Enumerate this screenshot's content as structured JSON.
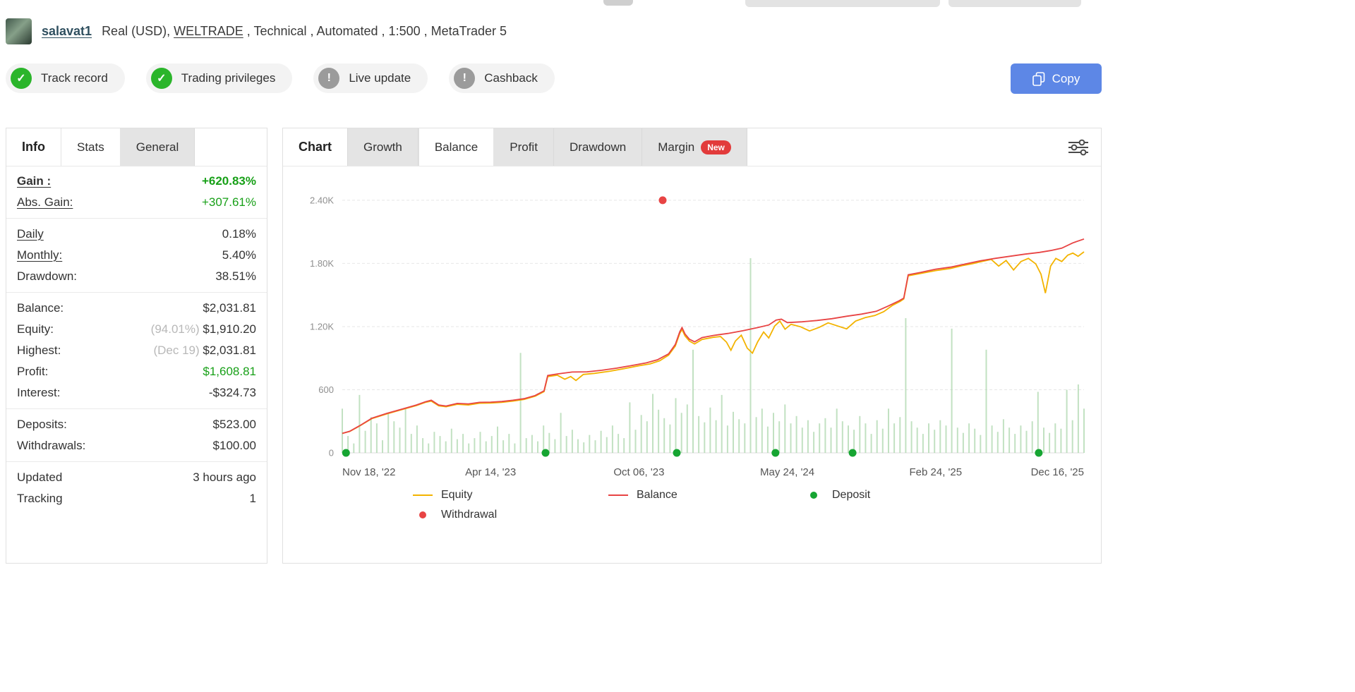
{
  "header": {
    "account_name": "salavat1",
    "details_prefix": "Real (USD), ",
    "broker": "WELTRADE",
    "details_suffix": " , Technical , Automated , 1:500 , MetaTrader 5"
  },
  "badges": [
    {
      "label": "Track record",
      "status": "ok"
    },
    {
      "label": "Trading privileges",
      "status": "ok"
    },
    {
      "label": "Live update",
      "status": "info"
    },
    {
      "label": "Cashback",
      "status": "info"
    }
  ],
  "copy_button": {
    "label": "Copy"
  },
  "info_panel": {
    "title": "Info",
    "tabs": [
      {
        "label": "Stats",
        "active": true
      },
      {
        "label": "General",
        "active": false
      }
    ],
    "rows": [
      {
        "label": "Gain :",
        "value": "+620.83%",
        "color": "green",
        "underline": true,
        "bold": true,
        "label_bold": true
      },
      {
        "label": "Abs. Gain:",
        "value": "+307.61%",
        "color": "green",
        "underline": true
      },
      {
        "sep": true
      },
      {
        "label": "Daily",
        "value": "0.18%",
        "underline": true
      },
      {
        "label": "Monthly:",
        "value": "5.40%",
        "underline": true
      },
      {
        "label": "Drawdown:",
        "value": "38.51%"
      },
      {
        "sep": true
      },
      {
        "label": "Balance:",
        "value": "$2,031.81"
      },
      {
        "label": "Equity:",
        "note": "(94.01%)",
        "value": "$1,910.20"
      },
      {
        "label": "Highest:",
        "note": "(Dec 19)",
        "value": "$2,031.81"
      },
      {
        "label": "Profit:",
        "value": "$1,608.81",
        "color": "green"
      },
      {
        "label": "Interest:",
        "value": "-$324.73"
      },
      {
        "sep": true
      },
      {
        "label": "Deposits:",
        "value": "$523.00"
      },
      {
        "label": "Withdrawals:",
        "value": "$100.00"
      },
      {
        "sep": true
      },
      {
        "label": "Updated",
        "value": "3 hours ago"
      },
      {
        "label": "Tracking",
        "value": "1"
      }
    ]
  },
  "chart_panel": {
    "title": "Chart",
    "tabs": [
      {
        "label": "Growth"
      },
      {
        "label": "Balance",
        "active": true
      },
      {
        "label": "Profit"
      },
      {
        "label": "Drawdown"
      },
      {
        "label": "Margin",
        "badge": "New"
      }
    ]
  },
  "chart_data": {
    "type": "line",
    "title": "Balance / Equity chart",
    "x_unit": "fraction of time axis (Nov 18 '22 to Dec 16 '25)",
    "x_labels": [
      "Nov 18, '22",
      "Apr 14, '23",
      "Oct 06, '23",
      "May 24, '24",
      "Feb 24, '25",
      "Dec 16, '25"
    ],
    "y_ticks": [
      {
        "v": 0,
        "label": "0"
      },
      {
        "v": 600,
        "label": "600"
      },
      {
        "v": 1200,
        "label": "1.20K"
      },
      {
        "v": 1800,
        "label": "1.80K"
      },
      {
        "v": 2400,
        "label": "2.40K"
      }
    ],
    "ylim": [
      0,
      2520
    ],
    "grid": true,
    "series": [
      {
        "name": "Equity",
        "color": "#f3b300",
        "points": [
          [
            0,
            185
          ],
          [
            0.01,
            203
          ],
          [
            0.025,
            262
          ],
          [
            0.04,
            326
          ],
          [
            0.06,
            370
          ],
          [
            0.08,
            410
          ],
          [
            0.1,
            450
          ],
          [
            0.112,
            480
          ],
          [
            0.12,
            492
          ],
          [
            0.13,
            448
          ],
          [
            0.14,
            438
          ],
          [
            0.155,
            462
          ],
          [
            0.17,
            455
          ],
          [
            0.185,
            472
          ],
          [
            0.2,
            474
          ],
          [
            0.215,
            480
          ],
          [
            0.23,
            492
          ],
          [
            0.245,
            508
          ],
          [
            0.26,
            538
          ],
          [
            0.272,
            582
          ],
          [
            0.277,
            725
          ],
          [
            0.29,
            738
          ],
          [
            0.3,
            700
          ],
          [
            0.308,
            725
          ],
          [
            0.315,
            688
          ],
          [
            0.325,
            745
          ],
          [
            0.34,
            755
          ],
          [
            0.36,
            775
          ],
          [
            0.38,
            800
          ],
          [
            0.4,
            828
          ],
          [
            0.415,
            845
          ],
          [
            0.428,
            875
          ],
          [
            0.44,
            928
          ],
          [
            0.449,
            1015
          ],
          [
            0.455,
            1135
          ],
          [
            0.458,
            1172
          ],
          [
            0.462,
            1112
          ],
          [
            0.468,
            1062
          ],
          [
            0.475,
            1035
          ],
          [
            0.485,
            1078
          ],
          [
            0.5,
            1098
          ],
          [
            0.51,
            1105
          ],
          [
            0.518,
            1052
          ],
          [
            0.524,
            975
          ],
          [
            0.53,
            1062
          ],
          [
            0.538,
            1118
          ],
          [
            0.546,
            995
          ],
          [
            0.553,
            948
          ],
          [
            0.56,
            1055
          ],
          [
            0.568,
            1148
          ],
          [
            0.575,
            1092
          ],
          [
            0.583,
            1205
          ],
          [
            0.59,
            1252
          ],
          [
            0.597,
            1175
          ],
          [
            0.605,
            1222
          ],
          [
            0.618,
            1198
          ],
          [
            0.63,
            1158
          ],
          [
            0.643,
            1192
          ],
          [
            0.655,
            1235
          ],
          [
            0.668,
            1205
          ],
          [
            0.68,
            1178
          ],
          [
            0.692,
            1252
          ],
          [
            0.705,
            1285
          ],
          [
            0.718,
            1305
          ],
          [
            0.73,
            1342
          ],
          [
            0.742,
            1402
          ],
          [
            0.752,
            1438
          ],
          [
            0.757,
            1462
          ],
          [
            0.763,
            1682
          ],
          [
            0.78,
            1705
          ],
          [
            0.8,
            1732
          ],
          [
            0.82,
            1752
          ],
          [
            0.835,
            1778
          ],
          [
            0.85,
            1798
          ],
          [
            0.862,
            1818
          ],
          [
            0.875,
            1838
          ],
          [
            0.885,
            1775
          ],
          [
            0.895,
            1828
          ],
          [
            0.905,
            1738
          ],
          [
            0.915,
            1818
          ],
          [
            0.925,
            1848
          ],
          [
            0.935,
            1795
          ],
          [
            0.942,
            1698
          ],
          [
            0.948,
            1518
          ],
          [
            0.955,
            1775
          ],
          [
            0.962,
            1848
          ],
          [
            0.97,
            1818
          ],
          [
            0.978,
            1878
          ],
          [
            0.985,
            1898
          ],
          [
            0.992,
            1868
          ],
          [
            1,
            1910
          ]
        ]
      },
      {
        "name": "Balance",
        "color": "#e84444",
        "points": [
          [
            0,
            185
          ],
          [
            0.01,
            205
          ],
          [
            0.025,
            265
          ],
          [
            0.04,
            330
          ],
          [
            0.06,
            375
          ],
          [
            0.08,
            415
          ],
          [
            0.1,
            455
          ],
          [
            0.112,
            485
          ],
          [
            0.12,
            500
          ],
          [
            0.13,
            455
          ],
          [
            0.14,
            445
          ],
          [
            0.155,
            470
          ],
          [
            0.17,
            465
          ],
          [
            0.185,
            480
          ],
          [
            0.2,
            482
          ],
          [
            0.215,
            488
          ],
          [
            0.23,
            500
          ],
          [
            0.245,
            515
          ],
          [
            0.26,
            545
          ],
          [
            0.272,
            590
          ],
          [
            0.277,
            735
          ],
          [
            0.29,
            750
          ],
          [
            0.31,
            768
          ],
          [
            0.33,
            770
          ],
          [
            0.35,
            785
          ],
          [
            0.37,
            805
          ],
          [
            0.39,
            830
          ],
          [
            0.41,
            855
          ],
          [
            0.425,
            885
          ],
          [
            0.44,
            940
          ],
          [
            0.449,
            1030
          ],
          [
            0.455,
            1150
          ],
          [
            0.458,
            1190
          ],
          [
            0.462,
            1130
          ],
          [
            0.468,
            1080
          ],
          [
            0.475,
            1055
          ],
          [
            0.485,
            1095
          ],
          [
            0.5,
            1115
          ],
          [
            0.52,
            1135
          ],
          [
            0.54,
            1160
          ],
          [
            0.56,
            1190
          ],
          [
            0.575,
            1215
          ],
          [
            0.585,
            1262
          ],
          [
            0.592,
            1270
          ],
          [
            0.6,
            1238
          ],
          [
            0.62,
            1245
          ],
          [
            0.64,
            1258
          ],
          [
            0.66,
            1275
          ],
          [
            0.68,
            1298
          ],
          [
            0.7,
            1318
          ],
          [
            0.72,
            1345
          ],
          [
            0.735,
            1392
          ],
          [
            0.75,
            1442
          ],
          [
            0.757,
            1470
          ],
          [
            0.763,
            1692
          ],
          [
            0.78,
            1715
          ],
          [
            0.8,
            1745
          ],
          [
            0.82,
            1765
          ],
          [
            0.84,
            1795
          ],
          [
            0.86,
            1825
          ],
          [
            0.88,
            1848
          ],
          [
            0.9,
            1868
          ],
          [
            0.92,
            1888
          ],
          [
            0.94,
            1905
          ],
          [
            0.955,
            1922
          ],
          [
            0.97,
            1945
          ],
          [
            0.985,
            1995
          ],
          [
            1,
            2032
          ]
        ]
      }
    ],
    "markers": {
      "deposits": {
        "color": "#16a532",
        "y": 0,
        "x": [
          0.005,
          0.274,
          0.451,
          0.584,
          0.688,
          0.939
        ]
      },
      "withdrawals": {
        "color": "#e84444",
        "y": 2400,
        "x": [
          0.432
        ]
      }
    },
    "bars": {
      "color": "#aed8ae",
      "values": [
        420,
        160,
        90,
        550,
        210,
        340,
        280,
        120,
        380,
        300,
        240,
        420,
        180,
        260,
        140,
        90,
        200,
        160,
        110,
        230,
        130,
        180,
        90,
        140,
        200,
        110,
        160,
        250,
        120,
        180,
        90,
        950,
        140,
        170,
        110,
        260,
        190,
        130,
        380,
        160,
        220,
        130,
        100,
        170,
        120,
        210,
        150,
        260,
        180,
        140,
        480,
        220,
        360,
        300,
        560,
        410,
        330,
        270,
        520,
        380,
        460,
        980,
        350,
        290,
        430,
        310,
        550,
        260,
        390,
        320,
        280,
        1850,
        340,
        420,
        250,
        380,
        300,
        460,
        280,
        350,
        240,
        310,
        200,
        280,
        330,
        240,
        420,
        300,
        260,
        220,
        350,
        280,
        180,
        310,
        230,
        420,
        280,
        340,
        1280,
        300,
        240,
        180,
        280,
        220,
        310,
        260,
        1180,
        240,
        190,
        280,
        230,
        170,
        980,
        260,
        200,
        320,
        240,
        180,
        260,
        210,
        300,
        580,
        240,
        190,
        280,
        230,
        600,
        310,
        650,
        420
      ]
    },
    "legend": [
      {
        "label": "Equity",
        "type": "line",
        "color": "#f3b300"
      },
      {
        "label": "Balance",
        "type": "line",
        "color": "#e84444"
      },
      {
        "label": "Deposit",
        "type": "dot",
        "color": "#16a532"
      },
      {
        "label": "Withdrawal",
        "type": "dot",
        "color": "#e84444"
      }
    ]
  }
}
